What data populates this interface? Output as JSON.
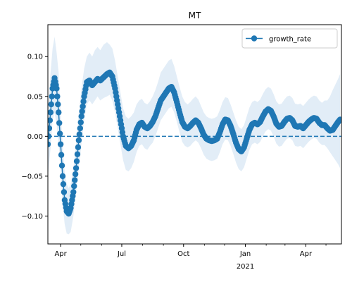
{
  "chart_data": {
    "type": "line",
    "title": "MT",
    "xlabel": "",
    "ylabel": "",
    "xlim": [
      "2020-03-13",
      "2021-05-24"
    ],
    "ylim": [
      -0.135,
      0.14
    ],
    "x_ticks": [
      {
        "date": "2020-04-01",
        "label": "Apr",
        "sublabel": ""
      },
      {
        "date": "2020-07-01",
        "label": "Jul",
        "sublabel": ""
      },
      {
        "date": "2020-10-01",
        "label": "Oct",
        "sublabel": ""
      },
      {
        "date": "2021-01-01",
        "label": "Jan",
        "sublabel": "2021"
      },
      {
        "date": "2021-04-01",
        "label": "Apr",
        "sublabel": ""
      }
    ],
    "x_minor_ticks": [
      "2020-05-01",
      "2020-06-01",
      "2020-08-01",
      "2020-09-01",
      "2020-11-01",
      "2020-12-01",
      "2021-02-01",
      "2021-03-01",
      "2021-05-01"
    ],
    "y_ticks": [
      -0.1,
      -0.05,
      0.0,
      0.05,
      0.1
    ],
    "y_tick_labels": [
      "−0.10",
      "−0.05",
      "0.00",
      "0.05",
      "0.10"
    ],
    "reference_line": {
      "y": 0.0,
      "style": "dashed",
      "color": "#1f77b4"
    },
    "legend": {
      "placement": "top-right",
      "entries": [
        "growth_rate"
      ]
    },
    "series": [
      {
        "name": "growth_rate",
        "color": "#1f77b4",
        "marker": "circle",
        "band_color": "#d6e6f4",
        "points": [
          {
            "x": "2020-03-13",
            "y": -0.01,
            "lo": -0.05,
            "hi": 0.03
          },
          {
            "x": "2020-03-17",
            "y": 0.03,
            "lo": -0.015,
            "hi": 0.08
          },
          {
            "x": "2020-03-20",
            "y": 0.06,
            "lo": 0.02,
            "hi": 0.11
          },
          {
            "x": "2020-03-23",
            "y": 0.073,
            "lo": 0.03,
            "hi": 0.125
          },
          {
            "x": "2020-03-26",
            "y": 0.06,
            "lo": 0.015,
            "hi": 0.105
          },
          {
            "x": "2020-03-29",
            "y": 0.03,
            "lo": -0.01,
            "hi": 0.08
          },
          {
            "x": "2020-04-01",
            "y": -0.01,
            "lo": -0.045,
            "hi": 0.03
          },
          {
            "x": "2020-04-04",
            "y": -0.05,
            "lo": -0.085,
            "hi": -0.01
          },
          {
            "x": "2020-04-07",
            "y": -0.08,
            "lo": -0.11,
            "hi": -0.045
          },
          {
            "x": "2020-04-10",
            "y": -0.094,
            "lo": -0.122,
            "hi": -0.06
          },
          {
            "x": "2020-04-13",
            "y": -0.097,
            "lo": -0.123,
            "hi": -0.065
          },
          {
            "x": "2020-04-16",
            "y": -0.09,
            "lo": -0.12,
            "hi": -0.06
          },
          {
            "x": "2020-04-20",
            "y": -0.07,
            "lo": -0.1,
            "hi": -0.04
          },
          {
            "x": "2020-04-24",
            "y": -0.04,
            "lo": -0.07,
            "hi": -0.01
          },
          {
            "x": "2020-04-28",
            "y": -0.005,
            "lo": -0.04,
            "hi": 0.03
          },
          {
            "x": "2020-05-02",
            "y": 0.025,
            "lo": -0.01,
            "hi": 0.06
          },
          {
            "x": "2020-05-06",
            "y": 0.05,
            "lo": 0.02,
            "hi": 0.085
          },
          {
            "x": "2020-05-10",
            "y": 0.068,
            "lo": 0.04,
            "hi": 0.1
          },
          {
            "x": "2020-05-14",
            "y": 0.07,
            "lo": 0.045,
            "hi": 0.105
          },
          {
            "x": "2020-05-18",
            "y": 0.064,
            "lo": 0.04,
            "hi": 0.1
          },
          {
            "x": "2020-05-22",
            "y": 0.068,
            "lo": 0.045,
            "hi": 0.108
          },
          {
            "x": "2020-05-26",
            "y": 0.072,
            "lo": 0.05,
            "hi": 0.112
          },
          {
            "x": "2020-05-30",
            "y": 0.07,
            "lo": 0.045,
            "hi": 0.108
          },
          {
            "x": "2020-06-04",
            "y": 0.074,
            "lo": 0.048,
            "hi": 0.115
          },
          {
            "x": "2020-06-09",
            "y": 0.078,
            "lo": 0.05,
            "hi": 0.118
          },
          {
            "x": "2020-06-13",
            "y": 0.08,
            "lo": 0.052,
            "hi": 0.115
          },
          {
            "x": "2020-06-17",
            "y": 0.075,
            "lo": 0.045,
            "hi": 0.11
          },
          {
            "x": "2020-06-21",
            "y": 0.06,
            "lo": 0.03,
            "hi": 0.095
          },
          {
            "x": "2020-06-25",
            "y": 0.04,
            "lo": 0.01,
            "hi": 0.075
          },
          {
            "x": "2020-06-29",
            "y": 0.02,
            "lo": -0.01,
            "hi": 0.055
          },
          {
            "x": "2020-07-03",
            "y": 0.0,
            "lo": -0.03,
            "hi": 0.035
          },
          {
            "x": "2020-07-07",
            "y": -0.012,
            "lo": -0.042,
            "hi": 0.025
          },
          {
            "x": "2020-07-11",
            "y": -0.015,
            "lo": -0.044,
            "hi": 0.022
          },
          {
            "x": "2020-07-15",
            "y": -0.012,
            "lo": -0.04,
            "hi": 0.025
          },
          {
            "x": "2020-07-19",
            "y": -0.005,
            "lo": -0.032,
            "hi": 0.03
          },
          {
            "x": "2020-07-23",
            "y": 0.008,
            "lo": -0.02,
            "hi": 0.04
          },
          {
            "x": "2020-07-27",
            "y": 0.015,
            "lo": -0.012,
            "hi": 0.045
          },
          {
            "x": "2020-07-31",
            "y": 0.017,
            "lo": -0.01,
            "hi": 0.047
          },
          {
            "x": "2020-08-04",
            "y": 0.012,
            "lo": -0.015,
            "hi": 0.042
          },
          {
            "x": "2020-08-08",
            "y": 0.01,
            "lo": -0.017,
            "hi": 0.04
          },
          {
            "x": "2020-08-12",
            "y": 0.013,
            "lo": -0.012,
            "hi": 0.044
          },
          {
            "x": "2020-08-16",
            "y": 0.018,
            "lo": -0.008,
            "hi": 0.05
          },
          {
            "x": "2020-08-20",
            "y": 0.025,
            "lo": 0.0,
            "hi": 0.058
          },
          {
            "x": "2020-08-24",
            "y": 0.035,
            "lo": 0.01,
            "hi": 0.068
          },
          {
            "x": "2020-08-28",
            "y": 0.045,
            "lo": 0.02,
            "hi": 0.08
          },
          {
            "x": "2020-09-01",
            "y": 0.05,
            "lo": 0.025,
            "hi": 0.085
          },
          {
            "x": "2020-09-05",
            "y": 0.055,
            "lo": 0.03,
            "hi": 0.09
          },
          {
            "x": "2020-09-09",
            "y": 0.06,
            "lo": 0.035,
            "hi": 0.095
          },
          {
            "x": "2020-09-13",
            "y": 0.062,
            "lo": 0.037,
            "hi": 0.097
          },
          {
            "x": "2020-09-17",
            "y": 0.055,
            "lo": 0.03,
            "hi": 0.088
          },
          {
            "x": "2020-09-21",
            "y": 0.043,
            "lo": 0.018,
            "hi": 0.075
          },
          {
            "x": "2020-09-25",
            "y": 0.03,
            "lo": 0.005,
            "hi": 0.062
          },
          {
            "x": "2020-09-29",
            "y": 0.018,
            "lo": -0.007,
            "hi": 0.05
          },
          {
            "x": "2020-10-03",
            "y": 0.012,
            "lo": -0.012,
            "hi": 0.043
          },
          {
            "x": "2020-10-07",
            "y": 0.01,
            "lo": -0.014,
            "hi": 0.04
          },
          {
            "x": "2020-10-11",
            "y": 0.013,
            "lo": -0.012,
            "hi": 0.043
          },
          {
            "x": "2020-10-15",
            "y": 0.017,
            "lo": -0.008,
            "hi": 0.047
          },
          {
            "x": "2020-10-19",
            "y": 0.02,
            "lo": -0.005,
            "hi": 0.05
          },
          {
            "x": "2020-10-23",
            "y": 0.017,
            "lo": -0.008,
            "hi": 0.046
          },
          {
            "x": "2020-10-27",
            "y": 0.01,
            "lo": -0.015,
            "hi": 0.038
          },
          {
            "x": "2020-10-31",
            "y": 0.002,
            "lo": -0.023,
            "hi": 0.03
          },
          {
            "x": "2020-11-04",
            "y": -0.003,
            "lo": -0.028,
            "hi": 0.025
          },
          {
            "x": "2020-11-08",
            "y": -0.005,
            "lo": -0.03,
            "hi": 0.023
          },
          {
            "x": "2020-11-12",
            "y": -0.006,
            "lo": -0.031,
            "hi": 0.022
          },
          {
            "x": "2020-11-16",
            "y": -0.005,
            "lo": -0.03,
            "hi": 0.023
          },
          {
            "x": "2020-11-20",
            "y": -0.003,
            "lo": -0.028,
            "hi": 0.025
          },
          {
            "x": "2020-11-24",
            "y": 0.005,
            "lo": -0.02,
            "hi": 0.033
          },
          {
            "x": "2020-11-28",
            "y": 0.015,
            "lo": -0.01,
            "hi": 0.043
          },
          {
            "x": "2020-12-02",
            "y": 0.021,
            "lo": -0.004,
            "hi": 0.049
          },
          {
            "x": "2020-12-06",
            "y": 0.02,
            "lo": -0.005,
            "hi": 0.048
          },
          {
            "x": "2020-12-10",
            "y": 0.013,
            "lo": -0.012,
            "hi": 0.04
          },
          {
            "x": "2020-12-14",
            "y": 0.003,
            "lo": -0.022,
            "hi": 0.03
          },
          {
            "x": "2020-12-18",
            "y": -0.008,
            "lo": -0.033,
            "hi": 0.02
          },
          {
            "x": "2020-12-22",
            "y": -0.016,
            "lo": -0.041,
            "hi": 0.012
          },
          {
            "x": "2020-12-26",
            "y": -0.019,
            "lo": -0.044,
            "hi": 0.009
          },
          {
            "x": "2020-12-30",
            "y": -0.014,
            "lo": -0.039,
            "hi": 0.014
          },
          {
            "x": "2021-01-03",
            "y": -0.003,
            "lo": -0.028,
            "hi": 0.025
          },
          {
            "x": "2021-01-07",
            "y": 0.008,
            "lo": -0.017,
            "hi": 0.036
          },
          {
            "x": "2021-01-11",
            "y": 0.015,
            "lo": -0.01,
            "hi": 0.043
          },
          {
            "x": "2021-01-15",
            "y": 0.017,
            "lo": -0.008,
            "hi": 0.045
          },
          {
            "x": "2021-01-19",
            "y": 0.015,
            "lo": -0.01,
            "hi": 0.043
          },
          {
            "x": "2021-01-23",
            "y": 0.018,
            "lo": -0.007,
            "hi": 0.046
          },
          {
            "x": "2021-01-27",
            "y": 0.025,
            "lo": 0.0,
            "hi": 0.053
          },
          {
            "x": "2021-01-31",
            "y": 0.031,
            "lo": 0.006,
            "hi": 0.059
          },
          {
            "x": "2021-02-04",
            "y": 0.034,
            "lo": 0.009,
            "hi": 0.062
          },
          {
            "x": "2021-02-08",
            "y": 0.032,
            "lo": 0.007,
            "hi": 0.06
          },
          {
            "x": "2021-02-12",
            "y": 0.025,
            "lo": 0.0,
            "hi": 0.053
          },
          {
            "x": "2021-02-16",
            "y": 0.016,
            "lo": -0.009,
            "hi": 0.044
          },
          {
            "x": "2021-02-20",
            "y": 0.012,
            "lo": -0.013,
            "hi": 0.04
          },
          {
            "x": "2021-02-24",
            "y": 0.013,
            "lo": -0.012,
            "hi": 0.041
          },
          {
            "x": "2021-02-28",
            "y": 0.018,
            "lo": -0.007,
            "hi": 0.046
          },
          {
            "x": "2021-03-04",
            "y": 0.022,
            "lo": -0.003,
            "hi": 0.05
          },
          {
            "x": "2021-03-08",
            "y": 0.023,
            "lo": -0.002,
            "hi": 0.051
          },
          {
            "x": "2021-03-12",
            "y": 0.02,
            "lo": -0.005,
            "hi": 0.048
          },
          {
            "x": "2021-03-16",
            "y": 0.013,
            "lo": -0.012,
            "hi": 0.041
          },
          {
            "x": "2021-03-20",
            "y": 0.012,
            "lo": -0.013,
            "hi": 0.04
          },
          {
            "x": "2021-03-24",
            "y": 0.013,
            "lo": -0.012,
            "hi": 0.041
          },
          {
            "x": "2021-03-28",
            "y": 0.01,
            "lo": -0.015,
            "hi": 0.038
          },
          {
            "x": "2021-04-01",
            "y": 0.014,
            "lo": -0.011,
            "hi": 0.042
          },
          {
            "x": "2021-04-05",
            "y": 0.018,
            "lo": -0.007,
            "hi": 0.046
          },
          {
            "x": "2021-04-09",
            "y": 0.021,
            "lo": -0.004,
            "hi": 0.049
          },
          {
            "x": "2021-04-13",
            "y": 0.023,
            "lo": -0.002,
            "hi": 0.051
          },
          {
            "x": "2021-04-17",
            "y": 0.022,
            "lo": -0.003,
            "hi": 0.05
          },
          {
            "x": "2021-04-21",
            "y": 0.017,
            "lo": -0.008,
            "hi": 0.045
          },
          {
            "x": "2021-04-25",
            "y": 0.014,
            "lo": -0.011,
            "hi": 0.042
          },
          {
            "x": "2021-04-29",
            "y": 0.014,
            "lo": -0.011,
            "hi": 0.045
          },
          {
            "x": "2021-05-03",
            "y": 0.01,
            "lo": -0.015,
            "hi": 0.045
          },
          {
            "x": "2021-05-07",
            "y": 0.007,
            "lo": -0.02,
            "hi": 0.05
          },
          {
            "x": "2021-05-11",
            "y": 0.008,
            "lo": -0.025,
            "hi": 0.058
          },
          {
            "x": "2021-05-15",
            "y": 0.013,
            "lo": -0.03,
            "hi": 0.065
          },
          {
            "x": "2021-05-19",
            "y": 0.018,
            "lo": -0.035,
            "hi": 0.072
          },
          {
            "x": "2021-05-22",
            "y": 0.021,
            "lo": -0.04,
            "hi": 0.078
          }
        ]
      }
    ]
  }
}
